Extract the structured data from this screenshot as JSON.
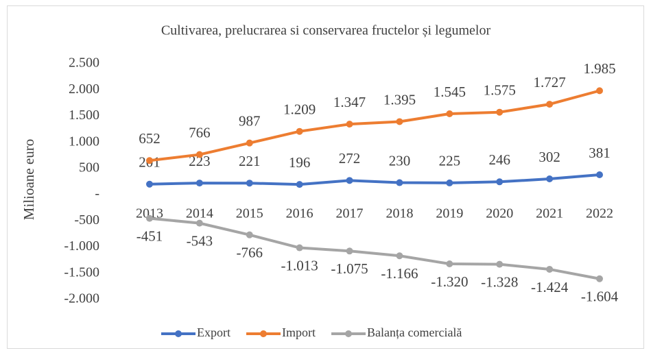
{
  "chart_data": {
    "type": "line",
    "title": "Cultivarea, prelucrarea si conservarea fructelor și legumelor",
    "y_label": "Milioane euro",
    "categories": [
      "2013",
      "2014",
      "2015",
      "2016",
      "2017",
      "2018",
      "2019",
      "2020",
      "2021",
      "2022"
    ],
    "series": [
      {
        "name": "Export",
        "color": "#4472c4",
        "label_position": "above",
        "values": [
          201,
          223,
          221,
          196,
          272,
          230,
          225,
          246,
          302,
          381
        ],
        "value_labels": [
          "201",
          "223",
          "221",
          "196",
          "272",
          "230",
          "225",
          "246",
          "302",
          "381"
        ]
      },
      {
        "name": "Import",
        "color": "#ed7d31",
        "label_position": "above",
        "values": [
          652,
          766,
          987,
          1209,
          1347,
          1395,
          1545,
          1575,
          1727,
          1985
        ],
        "value_labels": [
          "652",
          "766",
          "987",
          "1.209",
          "1.347",
          "1.395",
          "1.545",
          "1.575",
          "1.727",
          "1.985"
        ]
      },
      {
        "name": "Balanța comercială",
        "color": "#a5a5a5",
        "label_position": "below",
        "values": [
          -451,
          -543,
          -766,
          -1013,
          -1075,
          -1166,
          -1320,
          -1328,
          -1424,
          -1604
        ],
        "value_labels": [
          "-451",
          "-543",
          "-766",
          "-1.013",
          "-1.075",
          "-1.166",
          "-1.320",
          "-1.328",
          "-1.424",
          "-1.604"
        ]
      }
    ],
    "ylim": [
      -2000,
      2500
    ],
    "yticks": [
      {
        "value": -2000,
        "label": "-2.000"
      },
      {
        "value": -1500,
        "label": "-1.500"
      },
      {
        "value": -1000,
        "label": "-1.000"
      },
      -500,
      {
        "value": 0,
        "label": "-"
      },
      500,
      {
        "value": 1000,
        "label": "1.000"
      },
      {
        "value": 1500,
        "label": "1.500"
      },
      {
        "value": 2000,
        "label": "2.000"
      },
      {
        "value": 2500,
        "label": "2.500"
      }
    ],
    "grid": false,
    "legend": "bottom"
  }
}
